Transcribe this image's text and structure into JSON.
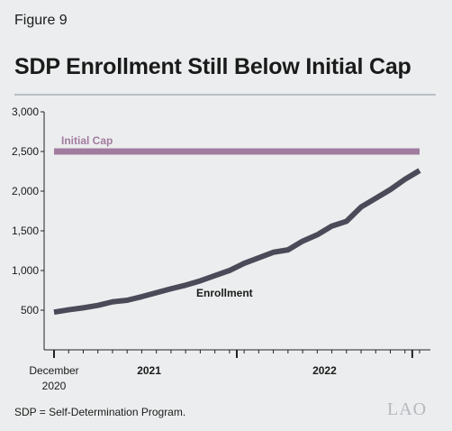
{
  "figure_label": "Figure 9",
  "title": "SDP Enrollment Still Below Initial Cap",
  "footnote": "SDP = Self-Determination Program.",
  "logo_text": "LAO",
  "colors": {
    "enrollment": "#4b4a59",
    "cap": "#a07c9f",
    "axis": "#222222",
    "background": "#ecedee",
    "rule": "#b9bfc7"
  },
  "chart_data": {
    "type": "line",
    "title": "SDP Enrollment Still Below Initial Cap",
    "xlabel": "",
    "ylabel": "",
    "ylim": [
      0,
      3000
    ],
    "y_ticks": [
      "3,000",
      "2,500",
      "2,000",
      "1,500",
      "1,000",
      "500"
    ],
    "y_tick_values": [
      3000,
      2500,
      2000,
      1500,
      1000,
      500
    ],
    "x_tick_labels": [
      {
        "text": "December",
        "line2": "2020",
        "bold": false,
        "month_index": 0
      },
      {
        "text": "2021",
        "bold": true,
        "month_index": 6.5
      },
      {
        "text": "2022",
        "bold": true,
        "month_index": 18.5
      }
    ],
    "x_major_ticks": [
      0,
      12.5,
      24.5
    ],
    "x_minor_ticks": [
      0,
      1,
      2,
      3,
      4,
      5,
      6,
      7,
      8,
      9,
      10,
      11,
      12,
      13,
      14,
      15,
      16,
      17,
      18,
      19,
      20,
      21,
      22,
      23,
      24,
      25
    ],
    "grid": false,
    "series": [
      {
        "name": "Initial Cap",
        "label": "Initial Cap",
        "values": [
          2500,
          2500,
          2500,
          2500,
          2500,
          2500,
          2500,
          2500,
          2500,
          2500,
          2500,
          2500,
          2500,
          2500,
          2500,
          2500,
          2500,
          2500,
          2500,
          2500,
          2500,
          2500,
          2500,
          2500,
          2500,
          2500
        ]
      },
      {
        "name": "Enrollment",
        "label": "Enrollment",
        "values": [
          475,
          505,
          530,
          560,
          605,
          625,
          670,
          720,
          770,
          815,
          870,
          935,
          1000,
          1090,
          1160,
          1230,
          1260,
          1370,
          1450,
          1560,
          1620,
          1800,
          1910,
          2020,
          2150,
          2260
        ]
      }
    ]
  }
}
